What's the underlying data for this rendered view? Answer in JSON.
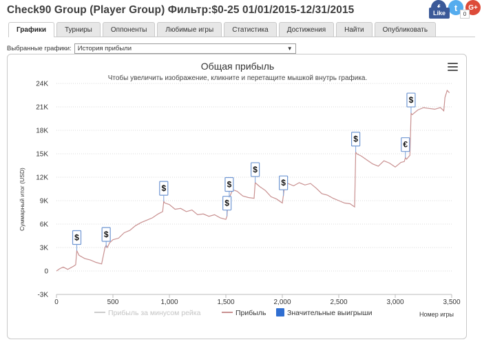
{
  "window": {
    "title": "Check90 Group (Player Group) Фильтр:$0-25 01/01/2015-12/31/2015"
  },
  "social": {
    "fb_label": "f",
    "tw_label": "t",
    "gp_label": "G+",
    "like_label": "Like",
    "gp_count": "0"
  },
  "tabs": [
    {
      "label": "Графики",
      "active": true
    },
    {
      "label": "Турниры"
    },
    {
      "label": "Оппоненты"
    },
    {
      "label": "Любимые игры"
    },
    {
      "label": "Статистика"
    },
    {
      "label": "Достижения"
    },
    {
      "label": "Найти"
    },
    {
      "label": "Опубликовать"
    }
  ],
  "selector": {
    "label": "Выбранные графики:",
    "value": "История прибыли"
  },
  "chart_data": {
    "type": "line",
    "title": "Общая прибыль",
    "subtitle": "Чтобы увеличить изображение, кликните и перетащите мышкой внутрь графика.",
    "xlabel": "Номер игры",
    "ylabel": "Суммарный итог (USD)",
    "xlim": [
      0,
      3500
    ],
    "ylim": [
      -3000,
      24000
    ],
    "xticks": [
      "0",
      "500",
      "1,000",
      "1,500",
      "2,000",
      "2,500",
      "3,000",
      "3,500"
    ],
    "yticks": [
      "-3K",
      "0",
      "3K",
      "6K",
      "9K",
      "12K",
      "15K",
      "18K",
      "21K",
      "24K"
    ],
    "grid": true,
    "line_color": "#c88f8f",
    "series": [
      {
        "name": "Прибыль",
        "x": [
          0,
          30,
          60,
          100,
          150,
          170,
          180,
          200,
          250,
          300,
          350,
          400,
          430,
          440,
          450,
          470,
          500,
          550,
          600,
          650,
          700,
          750,
          800,
          850,
          900,
          940,
          950,
          960,
          1000,
          1050,
          1100,
          1150,
          1200,
          1250,
          1300,
          1350,
          1400,
          1450,
          1500,
          1510,
          1520,
          1540,
          1560,
          1600,
          1650,
          1700,
          1750,
          1760,
          1800,
          1850,
          1900,
          1950,
          2000,
          2010,
          2020,
          2050,
          2100,
          2150,
          2200,
          2250,
          2300,
          2350,
          2400,
          2450,
          2500,
          2550,
          2600,
          2640,
          2650,
          2660,
          2700,
          2750,
          2800,
          2850,
          2900,
          2950,
          3000,
          3050,
          3080,
          3090,
          3100,
          3130,
          3140,
          3150,
          3200,
          3250,
          3300,
          3350,
          3400,
          3430,
          3440,
          3460,
          3480
        ],
        "y": [
          0,
          300,
          500,
          200,
          600,
          800,
          2600,
          2000,
          1600,
          1400,
          1100,
          900,
          3000,
          3300,
          3000,
          3600,
          4000,
          4200,
          4900,
          5200,
          5800,
          6200,
          6500,
          6800,
          7300,
          7600,
          8900,
          8700,
          8500,
          7900,
          8000,
          7600,
          7800,
          7200,
          7300,
          7000,
          7200,
          6800,
          6600,
          7000,
          9200,
          9700,
          10400,
          10200,
          9600,
          9400,
          9300,
          11300,
          10800,
          10300,
          9500,
          9200,
          8700,
          9700,
          10800,
          11200,
          10900,
          11300,
          11000,
          11200,
          10600,
          9900,
          9700,
          9300,
          9000,
          8700,
          8600,
          8200,
          15200,
          15000,
          14700,
          14200,
          13700,
          13400,
          14100,
          13800,
          13300,
          13900,
          14000,
          14500,
          14300,
          14800,
          20200,
          20000,
          20600,
          20900,
          20800,
          20700,
          20900,
          20500,
          22200,
          23100,
          22800
        ]
      },
      {
        "name": "Прибыль за минусом рейка"
      },
      {
        "name": "Значительные выигрыши"
      }
    ],
    "markers": [
      {
        "x": 180,
        "y": 2600,
        "symbol": "$"
      },
      {
        "x": 440,
        "y": 3000,
        "symbol": "$"
      },
      {
        "x": 950,
        "y": 8900,
        "symbol": "$"
      },
      {
        "x": 1510,
        "y": 7000,
        "symbol": "$"
      },
      {
        "x": 1530,
        "y": 9400,
        "symbol": "$"
      },
      {
        "x": 1760,
        "y": 11300,
        "symbol": "$"
      },
      {
        "x": 2010,
        "y": 9600,
        "symbol": "$"
      },
      {
        "x": 2650,
        "y": 15200,
        "symbol": "$"
      },
      {
        "x": 3090,
        "y": 14500,
        "symbol": "€"
      },
      {
        "x": 3140,
        "y": 20200,
        "symbol": "$"
      }
    ],
    "legend": {
      "placement": "bottom-center",
      "items": [
        "Прибыль за минусом рейка",
        "Прибыль",
        "Значительные выигрыши"
      ],
      "colors": [
        "#cccccc",
        "#c88f8f",
        "#2f6ed1"
      ]
    }
  }
}
